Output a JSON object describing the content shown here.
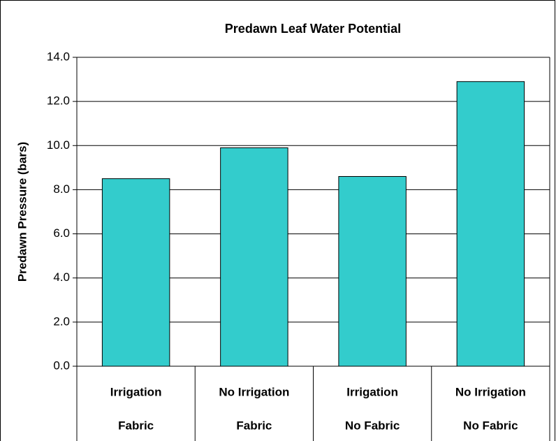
{
  "chart_data": {
    "type": "bar",
    "title": "Predawn Leaf Water Potential",
    "y_label": "Predawn Pressure (bars)",
    "categories": [
      [
        "Irrigation",
        "Fabric"
      ],
      [
        "No Irrigation",
        "Fabric"
      ],
      [
        "Irrigation",
        "No Fabric"
      ],
      [
        "No Irrigation",
        "No Fabric"
      ]
    ],
    "values": [
      8.5,
      9.9,
      8.6,
      12.9
    ],
    "color": "#33cccc",
    "ylim": [
      0,
      14
    ],
    "yticks": [
      {
        "value": 0,
        "label": "0.0"
      },
      {
        "value": 2,
        "label": "2.0"
      },
      {
        "value": 4,
        "label": "4.0"
      },
      {
        "value": 6,
        "label": "6.0"
      },
      {
        "value": 8,
        "label": "8.0"
      },
      {
        "value": 10,
        "label": "10.0"
      },
      {
        "value": 12,
        "label": "12.0"
      },
      {
        "value": 14,
        "label": "14.0"
      }
    ],
    "grid": true
  }
}
